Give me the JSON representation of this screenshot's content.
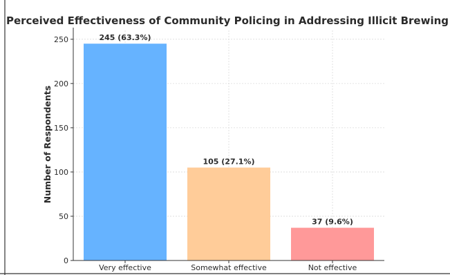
{
  "chart_data": {
    "type": "bar",
    "title": "Perceived Effectiveness of Community Policing in Addressing Illicit Brewing",
    "xlabel": "",
    "ylabel": "Number of Respondents",
    "categories": [
      "Very effective",
      "Somewhat effective",
      "Not effective"
    ],
    "values": [
      245,
      105,
      37
    ],
    "data_labels": [
      "245 (63.3%)",
      "105 (27.1%)",
      "37 (9.6%)"
    ],
    "colors": [
      "#66b3ff",
      "#ffcc99",
      "#ff9999"
    ],
    "ylim": [
      0,
      260
    ],
    "yticks": [
      0,
      50,
      100,
      150,
      200,
      250
    ],
    "grid": true,
    "legend": "none"
  }
}
